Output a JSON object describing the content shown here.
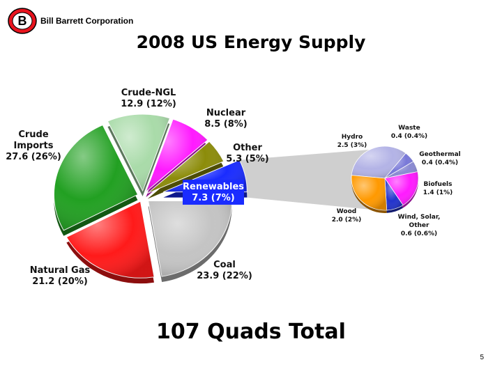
{
  "header": {
    "company": "Bill Barrett Corporation",
    "logo_letters": "B",
    "title": "2008 US Energy Supply"
  },
  "footer": {
    "total": "107 Quads Total",
    "page_number": "5"
  },
  "colors": {
    "coal": "#c4c4c4",
    "natural_gas": "#ff1a1a",
    "crude_imports": "#22a022",
    "crude_ngl": "#a9dba9",
    "nuclear": "#ff1aff",
    "other": "#8c8c0a",
    "renewables": "#1a2cff",
    "hydro": "#b3b3e6",
    "waste": "#7878d8",
    "geothermal": "#8a8ad2",
    "biofuels": "#ff1aff",
    "wind_solar_other": "#2233cc",
    "wood": "#ff9900",
    "logo_red": "#e8141e"
  },
  "chart_data": [
    {
      "type": "pie",
      "title": "2008 US Energy Supply",
      "slices": [
        {
          "key": "coal",
          "name": "Coal",
          "value": 23.9,
          "percent": "22%",
          "text": "23.9 (22%)"
        },
        {
          "key": "natural_gas",
          "name": "Natural Gas",
          "value": 21.2,
          "percent": "20%",
          "text": "21.2 (20%)"
        },
        {
          "key": "crude_imports",
          "name": "Crude Imports",
          "value": 27.6,
          "percent": "26%",
          "text": "27.6 (26%)"
        },
        {
          "key": "crude_ngl",
          "name": "Crude-NGL",
          "value": 12.9,
          "percent": "12%",
          "text": "12.9 (12%)"
        },
        {
          "key": "nuclear",
          "name": "Nuclear",
          "value": 8.5,
          "percent": "8%",
          "text": "8.5 (8%)"
        },
        {
          "key": "other",
          "name": "Other",
          "value": 5.3,
          "percent": "5%",
          "text": "5.3 (5%)"
        },
        {
          "key": "renewables",
          "name": "Renewables",
          "value": 7.3,
          "percent": "7%",
          "text": "7.3 (7%)"
        }
      ]
    },
    {
      "type": "pie",
      "title": "",
      "slices": [
        {
          "key": "hydro",
          "name": "Hydro",
          "value": 2.5,
          "percent": "3%",
          "text": "2.5 (3%)"
        },
        {
          "key": "waste",
          "name": "Waste",
          "value": 0.4,
          "percent": "0.4%",
          "text": "0.4 (0.4%)"
        },
        {
          "key": "geothermal",
          "name": "Geothermal",
          "value": 0.4,
          "percent": "0.4%",
          "text": "0.4 (0.4%)"
        },
        {
          "key": "biofuels",
          "name": "Biofuels",
          "value": 1.4,
          "percent": "1%",
          "text": "1.4 (1%)"
        },
        {
          "key": "wind_solar_other",
          "name": "Wind, Solar, Other",
          "value": 0.6,
          "percent": "0.6%",
          "text": "0.6 (0.6%)"
        },
        {
          "key": "wood",
          "name": "Wood",
          "value": 2.0,
          "percent": "2%",
          "text": "2.0 (2%)"
        }
      ]
    }
  ]
}
